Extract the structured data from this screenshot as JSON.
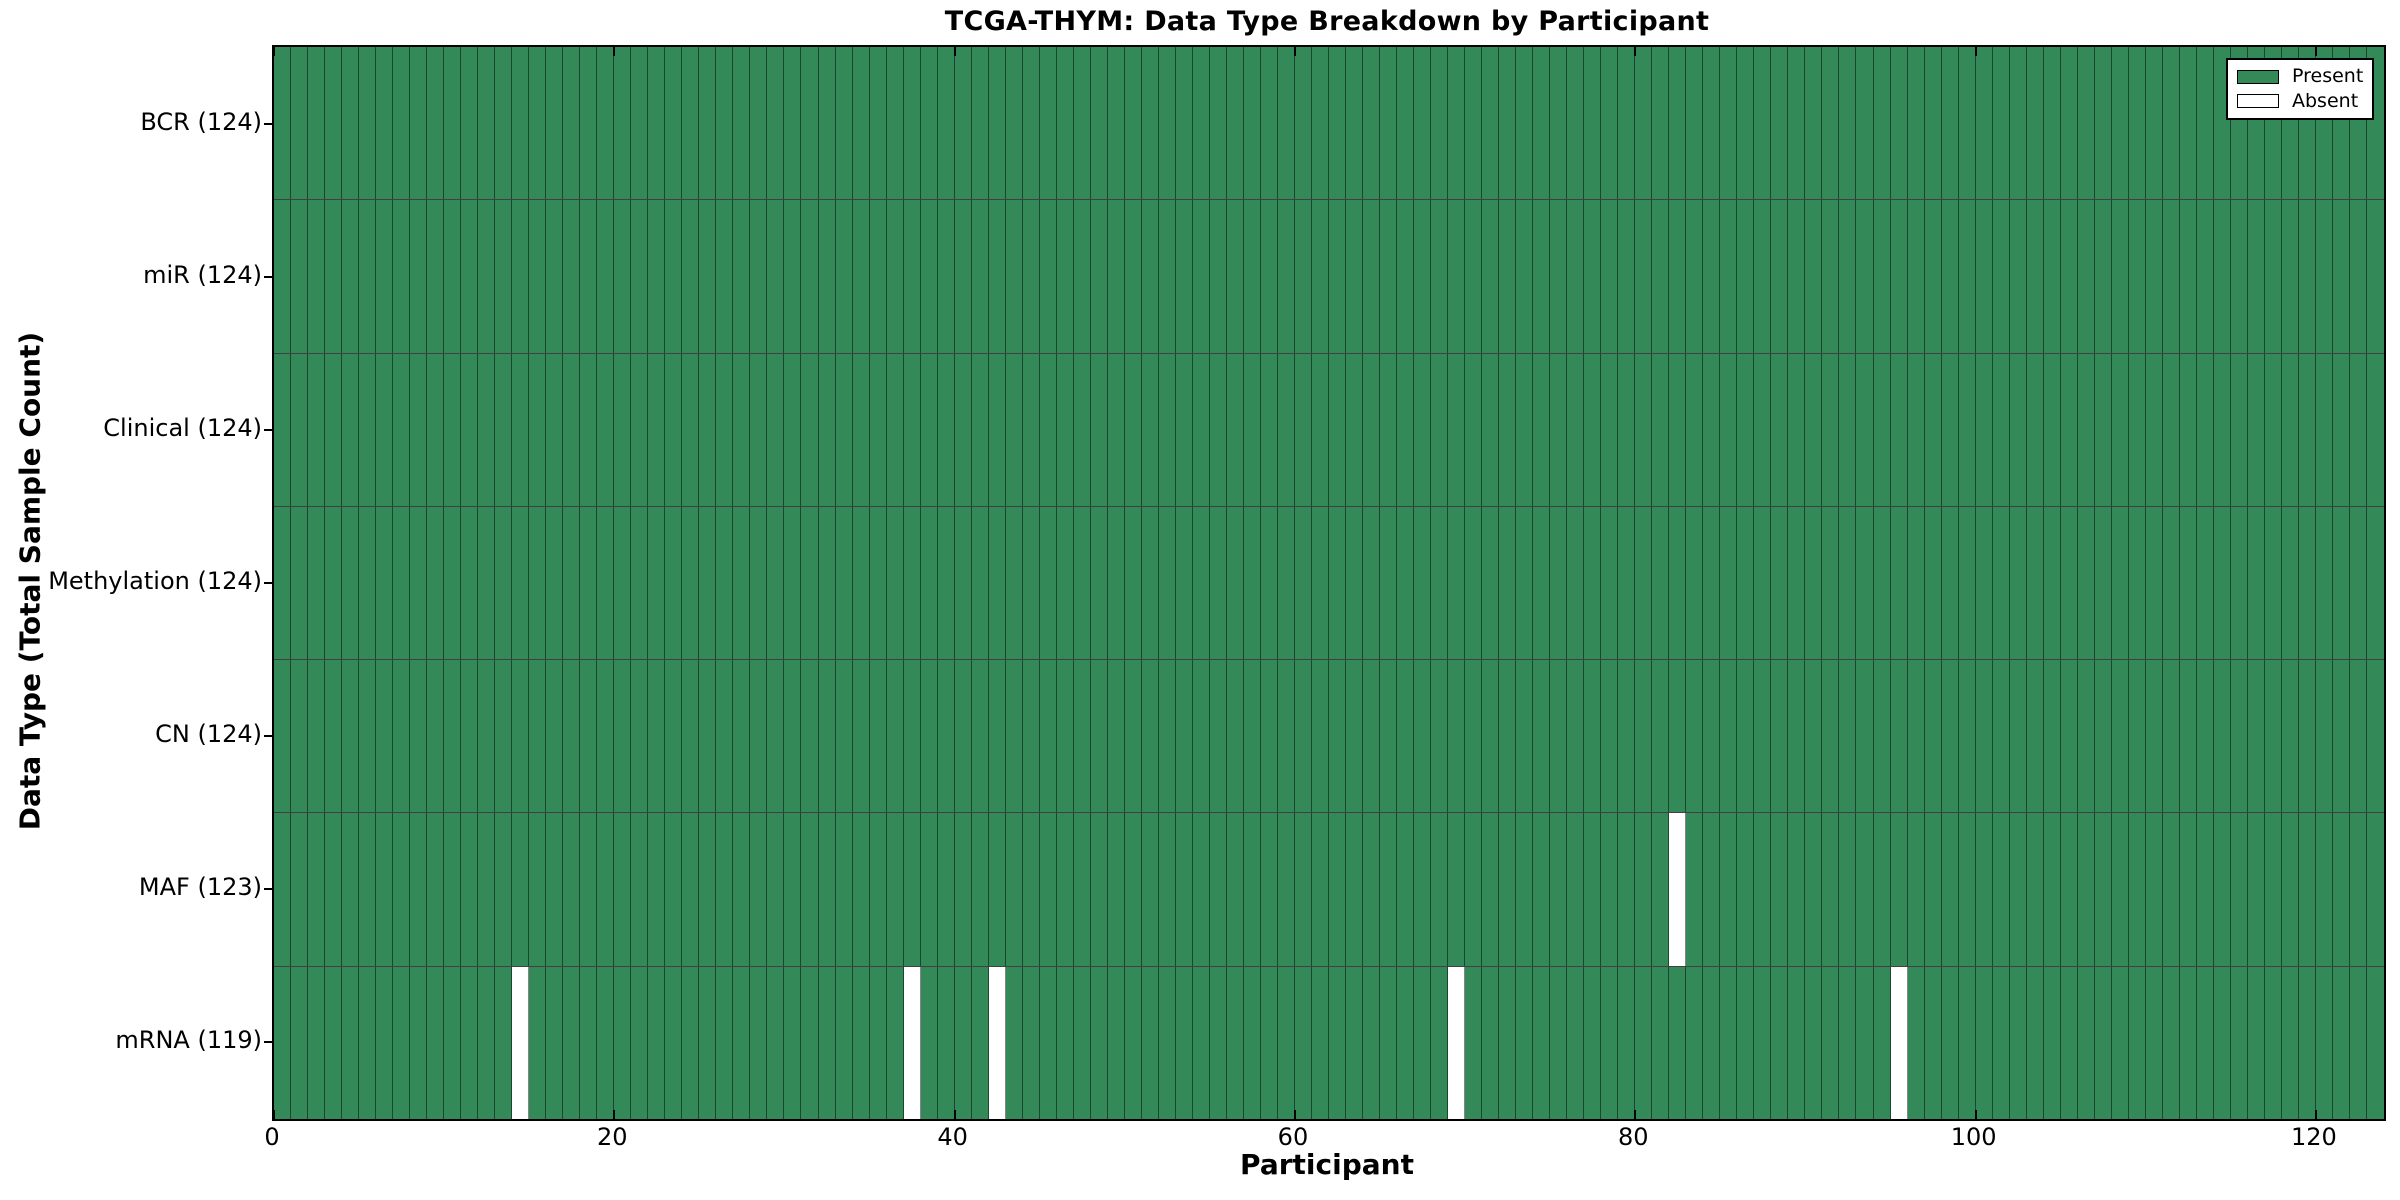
{
  "figure": {
    "title": "TCGA-THYM: Data Type Breakdown by Participant",
    "xlabel": "Participant",
    "ylabel": "Data Type (Total Sample Count)"
  },
  "legend": {
    "entries": [
      {
        "label": "Present",
        "color": "#348958"
      },
      {
        "label": "Absent",
        "color": "#ffffff"
      }
    ]
  },
  "colors": {
    "present": "#348958",
    "absent": "#ffffff",
    "axis": "#000000"
  },
  "chart_data": {
    "type": "heatmap",
    "title": "TCGA-THYM: Data Type Breakdown by Participant",
    "xlabel": "Participant",
    "ylabel": "Data Type (Total Sample Count)",
    "legend": [
      "Present",
      "Absent"
    ],
    "legend_position": "upper right",
    "x_range": [
      0,
      124
    ],
    "x_ticks": [
      0,
      20,
      40,
      60,
      80,
      100,
      120
    ],
    "n_participants": 124,
    "rows": [
      {
        "label": "BCR (124)",
        "name": "BCR",
        "total": 124,
        "absent_participant_indices": []
      },
      {
        "label": "miR (124)",
        "name": "miR",
        "total": 124,
        "absent_participant_indices": []
      },
      {
        "label": "Clinical (124)",
        "name": "Clinical",
        "total": 124,
        "absent_participant_indices": []
      },
      {
        "label": "Methylation (124)",
        "name": "Methylation",
        "total": 124,
        "absent_participant_indices": []
      },
      {
        "label": "CN (124)",
        "name": "CN",
        "total": 124,
        "absent_participant_indices": []
      },
      {
        "label": "MAF (123)",
        "name": "MAF",
        "total": 123,
        "absent_participant_indices": [
          82
        ]
      },
      {
        "label": "mRNA (119)",
        "name": "mRNA",
        "total": 119,
        "absent_participant_indices": [
          14,
          37,
          42,
          69,
          95
        ]
      }
    ]
  }
}
